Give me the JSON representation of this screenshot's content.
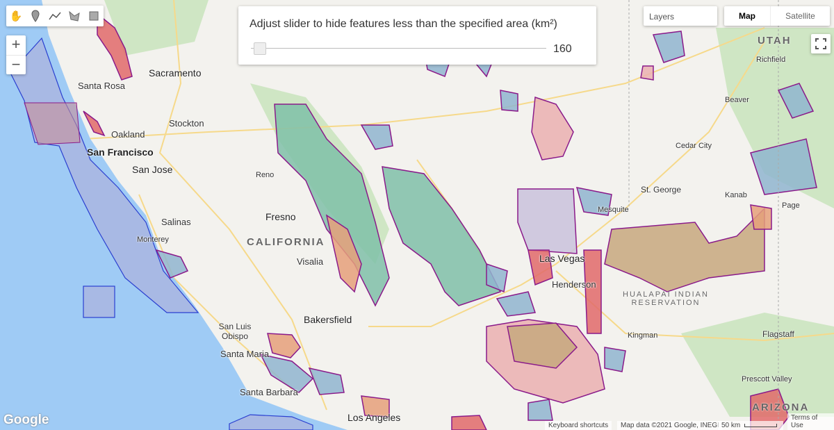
{
  "drawing_tools": [
    {
      "name": "hand-icon",
      "glyph": "✋"
    },
    {
      "name": "marker-icon",
      "glyph": "📍"
    },
    {
      "name": "polyline-icon",
      "glyph": "〰"
    },
    {
      "name": "polygon-icon",
      "glyph": "⬠"
    },
    {
      "name": "rectangle-icon",
      "glyph": "■"
    }
  ],
  "zoom": {
    "in": "+",
    "out": "−"
  },
  "slider_panel": {
    "label": "Adjust slider to hide features less than the specified area (km²)",
    "value": "160",
    "fraction": 0.02
  },
  "layers_label": "Layers",
  "map_types": {
    "map": "Map",
    "satellite": "Satellite",
    "selected": "Map"
  },
  "cities": [
    {
      "name": "Sacramento",
      "big": true
    },
    {
      "name": "Santa Rosa"
    },
    {
      "name": "Oakland"
    },
    {
      "name": "San Francisco",
      "big": true
    },
    {
      "name": "San Jose",
      "big": true
    },
    {
      "name": "Stockton"
    },
    {
      "name": "Fresno",
      "big": true
    },
    {
      "name": "Salinas"
    },
    {
      "name": "Monterey"
    },
    {
      "name": "Visalia"
    },
    {
      "name": "Bakersfield",
      "big": true
    },
    {
      "name": "San Luis Obispo"
    },
    {
      "name": "Santa Maria"
    },
    {
      "name": "Santa Barbara"
    },
    {
      "name": "Los Angeles",
      "big": true
    },
    {
      "name": "Las Vegas",
      "big": true
    },
    {
      "name": "Henderson"
    },
    {
      "name": "Mesquite"
    },
    {
      "name": "St. George"
    },
    {
      "name": "Cedar City"
    },
    {
      "name": "Beaver"
    },
    {
      "name": "Richfield"
    },
    {
      "name": "Kanab"
    },
    {
      "name": "Page"
    },
    {
      "name": "Kingman"
    },
    {
      "name": "Flagstaff"
    },
    {
      "name": "Prescott Valley"
    },
    {
      "name": "Reno"
    }
  ],
  "regions": [
    {
      "name": "CALIFORNIA"
    },
    {
      "name": "UTAH"
    },
    {
      "name": "HUALAPAI INDIAN RESERVATION"
    },
    {
      "name": "ARIZONA"
    }
  ],
  "footer": {
    "keyboard": "Keyboard shortcuts",
    "mapdata": "Map data ©2021 Google, INEGI",
    "scale": "50 km",
    "terms": "Terms of Use",
    "logo": "Google"
  },
  "colors": {
    "ocean": "#9fcbf5",
    "land": "#f3f2ee",
    "feature_outline": "#8a1a8a",
    "feature_blue": "#8fb5cf",
    "feature_green": "#7fbfa8",
    "feature_pink": "#eab0b0",
    "feature_red": "#e06a6a",
    "marine_zone": "#aab4e0"
  }
}
